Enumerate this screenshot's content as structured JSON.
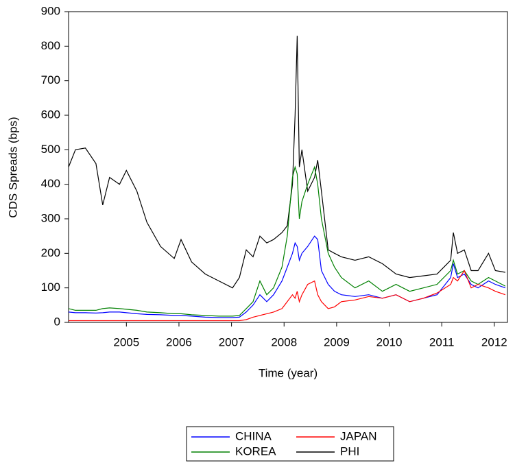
{
  "chart_data": {
    "type": "line",
    "y_label": "CDS Spreads (bps)",
    "x_label": "Time (year)",
    "x": [
      2004.4,
      2004.53,
      2004.72,
      2004.92,
      2005.05,
      2005.18,
      2005.37,
      2005.5,
      2005.7,
      2005.89,
      2006.15,
      2006.41,
      2006.54,
      2006.74,
      2007.0,
      2007.26,
      2007.52,
      2007.65,
      2007.78,
      2007.91,
      2008.04,
      2008.17,
      2008.3,
      2008.46,
      2008.56,
      2008.66,
      2008.71,
      2008.75,
      2008.79,
      2008.84,
      2008.95,
      2009.08,
      2009.14,
      2009.21,
      2009.34,
      2009.46,
      2009.59,
      2009.85,
      2010.11,
      2010.37,
      2010.63,
      2010.89,
      2011.15,
      2011.41,
      2011.67,
      2011.72,
      2011.8,
      2011.93,
      2012.06,
      2012.19,
      2012.39,
      2012.52,
      2012.71
    ],
    "series": [
      {
        "name": "PHI",
        "color": "#000000",
        "values": [
          450,
          500,
          505,
          460,
          340,
          420,
          400,
          440,
          380,
          290,
          220,
          185,
          240,
          175,
          140,
          120,
          100,
          130,
          210,
          190,
          250,
          230,
          240,
          260,
          280,
          400,
          600,
          830,
          450,
          500,
          380,
          420,
          470,
          380,
          210,
          200,
          190,
          180,
          190,
          170,
          140,
          130,
          135,
          140,
          180,
          260,
          200,
          210,
          150,
          150,
          200,
          150,
          145
        ]
      },
      {
        "name": "KOREA",
        "color": "#008000",
        "values": [
          40,
          35,
          35,
          35,
          40,
          42,
          40,
          38,
          35,
          30,
          28,
          25,
          25,
          22,
          20,
          18,
          18,
          20,
          40,
          60,
          120,
          80,
          100,
          160,
          250,
          420,
          450,
          430,
          300,
          350,
          400,
          450,
          400,
          300,
          200,
          160,
          130,
          100,
          120,
          90,
          110,
          90,
          100,
          110,
          150,
          180,
          140,
          150,
          120,
          110,
          130,
          120,
          105
        ]
      },
      {
        "name": "CHINA",
        "color": "#0000ff",
        "values": [
          30,
          28,
          28,
          27,
          28,
          30,
          30,
          28,
          25,
          23,
          22,
          20,
          20,
          18,
          15,
          14,
          14,
          15,
          30,
          50,
          80,
          60,
          80,
          120,
          160,
          200,
          230,
          220,
          180,
          200,
          220,
          250,
          240,
          150,
          110,
          90,
          80,
          75,
          80,
          70,
          80,
          60,
          70,
          80,
          130,
          170,
          130,
          140,
          110,
          100,
          120,
          110,
          100
        ]
      },
      {
        "name": "JAPAN",
        "color": "#ff0000",
        "values": [
          5,
          5,
          5,
          5,
          5,
          5,
          5,
          5,
          5,
          5,
          5,
          5,
          5,
          5,
          5,
          5,
          5,
          5,
          8,
          15,
          20,
          25,
          30,
          40,
          60,
          80,
          70,
          90,
          60,
          80,
          110,
          120,
          80,
          60,
          40,
          45,
          60,
          65,
          75,
          70,
          80,
          60,
          70,
          85,
          110,
          130,
          120,
          150,
          100,
          110,
          100,
          90,
          80
        ]
      }
    ],
    "xlim": [
      2004.4,
      2012.75
    ],
    "xticks": [
      {
        "value": 2005.5,
        "label": "2005"
      },
      {
        "value": 2006.5,
        "label": "2006"
      },
      {
        "value": 2007.5,
        "label": "2007"
      },
      {
        "value": 2008.5,
        "label": "2008"
      },
      {
        "value": 2009.5,
        "label": "2009"
      },
      {
        "value": 2010.5,
        "label": "2010"
      },
      {
        "value": 2011.5,
        "label": "2011"
      },
      {
        "value": 2012.5,
        "label": "2012"
      }
    ],
    "ylim": [
      0,
      900
    ],
    "yticks": [
      0,
      100,
      200,
      300,
      400,
      500,
      600,
      700,
      800,
      900
    ],
    "legend": "bottom"
  }
}
